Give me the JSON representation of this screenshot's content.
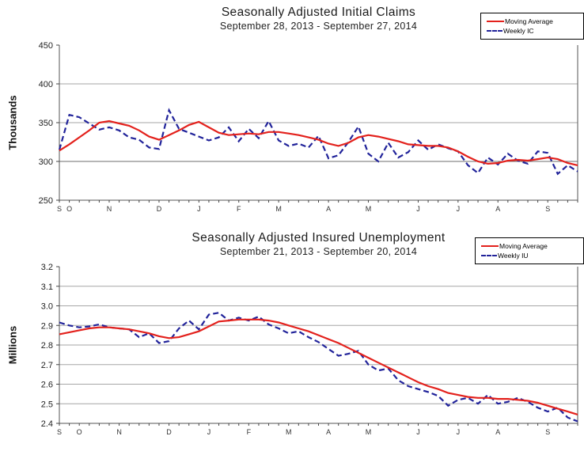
{
  "chart_data": [
    {
      "type": "line",
      "title": "Seasonally Adjusted Initial Claims",
      "subtitle": "September 28, 2013 - September 27, 2014",
      "ylabel": "Thousands",
      "ymin": 250,
      "ymax": 450,
      "ystep": 50,
      "decimals": 0,
      "grid_on": true,
      "grid_color": "#a6a6a6",
      "emphasis_gridline": 300,
      "emphasis_grid_color": "#6e6e6e",
      "axis_color": "#555555",
      "tick_color": "#444444",
      "x_labels": [
        "S",
        "O",
        "N",
        "D",
        "J",
        "F",
        "M",
        "A",
        "M",
        "J",
        "J",
        "A",
        "S"
      ],
      "x_label_weeks": [
        1,
        2,
        6,
        11,
        15,
        19,
        23,
        28,
        32,
        37,
        41,
        45,
        50
      ],
      "legend_position": "top-right",
      "legend": [
        {
          "label": "Moving Average",
          "color": "#e3211c",
          "dash": false,
          "series": "moving_average"
        },
        {
          "label": "Weekly IC",
          "color": "#21239a",
          "dash": true,
          "series": "weekly"
        }
      ],
      "series": {
        "moving_average": [
          314,
          322,
          331,
          340,
          350,
          352,
          349,
          346,
          340,
          332,
          328,
          334,
          340,
          347,
          351,
          344,
          337,
          334,
          335,
          336,
          335,
          338,
          338,
          336,
          334,
          331,
          328,
          323,
          320,
          324,
          331,
          334,
          332,
          329,
          326,
          322,
          321,
          320,
          320,
          318,
          313,
          306,
          300,
          297,
          298,
          301,
          302,
          301,
          303,
          305,
          303,
          298,
          295
        ],
        "weekly": [
          315,
          360,
          357,
          349,
          341,
          344,
          340,
          331,
          328,
          318,
          316,
          366,
          342,
          337,
          332,
          327,
          331,
          344,
          326,
          342,
          330,
          352,
          327,
          320,
          323,
          318,
          333,
          304,
          308,
          325,
          345,
          310,
          300,
          324,
          305,
          312,
          327,
          315,
          322,
          317,
          313,
          295,
          285,
          305,
          296,
          310,
          301,
          297,
          313,
          311,
          284,
          295,
          287
        ]
      }
    },
    {
      "type": "line",
      "title": "Seasonally Adjusted Insured Unemployment",
      "subtitle": "September 21, 2013 - September 20, 2014",
      "ylabel": "Millions",
      "ymin": 2.4,
      "ymax": 3.2,
      "ystep": 0.1,
      "decimals": 1,
      "grid_on": true,
      "grid_color": "#a6a6a6",
      "emphasis_gridline": null,
      "emphasis_grid_color": "#6e6e6e",
      "axis_color": "#555555",
      "tick_color": "#444444",
      "x_labels": [
        "S",
        "O",
        "N",
        "D",
        "J",
        "F",
        "M",
        "A",
        "M",
        "J",
        "J",
        "A",
        "S"
      ],
      "x_label_weeks": [
        1,
        3,
        7,
        12,
        16,
        20,
        24,
        28,
        32,
        37,
        41,
        45,
        50
      ],
      "legend_position": "top-right",
      "legend": [
        {
          "label": "Moving Average",
          "color": "#e3211c",
          "dash": false,
          "series": "moving_average"
        },
        {
          "label": "Weekly IU",
          "color": "#21239a",
          "dash": true,
          "series": "weekly"
        }
      ],
      "series": {
        "moving_average": [
          2.855,
          2.865,
          2.875,
          2.885,
          2.89,
          2.89,
          2.885,
          2.88,
          2.87,
          2.86,
          2.845,
          2.835,
          2.84,
          2.855,
          2.87,
          2.895,
          2.92,
          2.925,
          2.93,
          2.93,
          2.93,
          2.925,
          2.915,
          2.9,
          2.885,
          2.87,
          2.85,
          2.83,
          2.81,
          2.785,
          2.76,
          2.735,
          2.71,
          2.685,
          2.66,
          2.635,
          2.61,
          2.59,
          2.575,
          2.555,
          2.545,
          2.535,
          2.53,
          2.53,
          2.525,
          2.525,
          2.52,
          2.515,
          2.505,
          2.49,
          2.475,
          2.46,
          2.445
        ],
        "weekly": [
          2.915,
          2.9,
          2.89,
          2.895,
          2.905,
          2.89,
          2.885,
          2.88,
          2.84,
          2.86,
          2.81,
          2.82,
          2.885,
          2.925,
          2.88,
          2.955,
          2.965,
          2.925,
          2.94,
          2.925,
          2.945,
          2.905,
          2.885,
          2.86,
          2.87,
          2.84,
          2.815,
          2.78,
          2.745,
          2.755,
          2.77,
          2.7,
          2.67,
          2.68,
          2.62,
          2.59,
          2.575,
          2.56,
          2.54,
          2.49,
          2.52,
          2.53,
          2.5,
          2.545,
          2.5,
          2.51,
          2.53,
          2.51,
          2.48,
          2.46,
          2.48,
          2.43,
          2.41
        ]
      }
    }
  ]
}
